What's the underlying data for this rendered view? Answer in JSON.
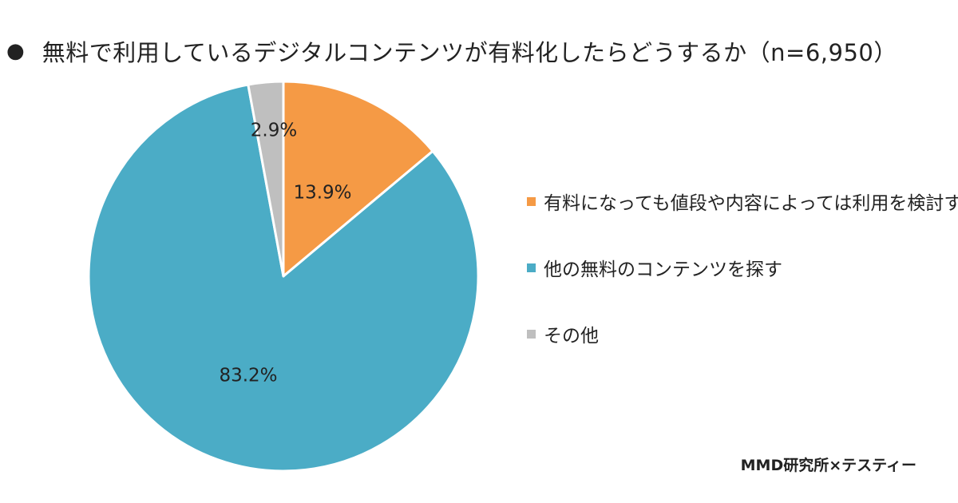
{
  "header": {
    "bullet": "●",
    "title": "無料で利用しているデジタルコンテンツが有料化したらどうするか（n=6,950）"
  },
  "chart_data": {
    "type": "pie",
    "title": "無料で利用しているデジタルコンテンツが有料化したらどうするか（n=6,950）",
    "legend_placement": "right",
    "start_angle_deg": 0,
    "direction": "clockwise",
    "slices": [
      {
        "label": "有料になっても値段や内容によっては利用を検討する",
        "value": 13.9,
        "display": "13.9%",
        "color": "#F59A45"
      },
      {
        "label": "他の無料のコンテンツを探す",
        "value": 83.2,
        "display": "83.2%",
        "color": "#4BACC6"
      },
      {
        "label": "その他",
        "value": 2.9,
        "display": "2.9%",
        "color": "#BFBFBF"
      }
    ]
  },
  "source": "MMD研究所×テスティー"
}
